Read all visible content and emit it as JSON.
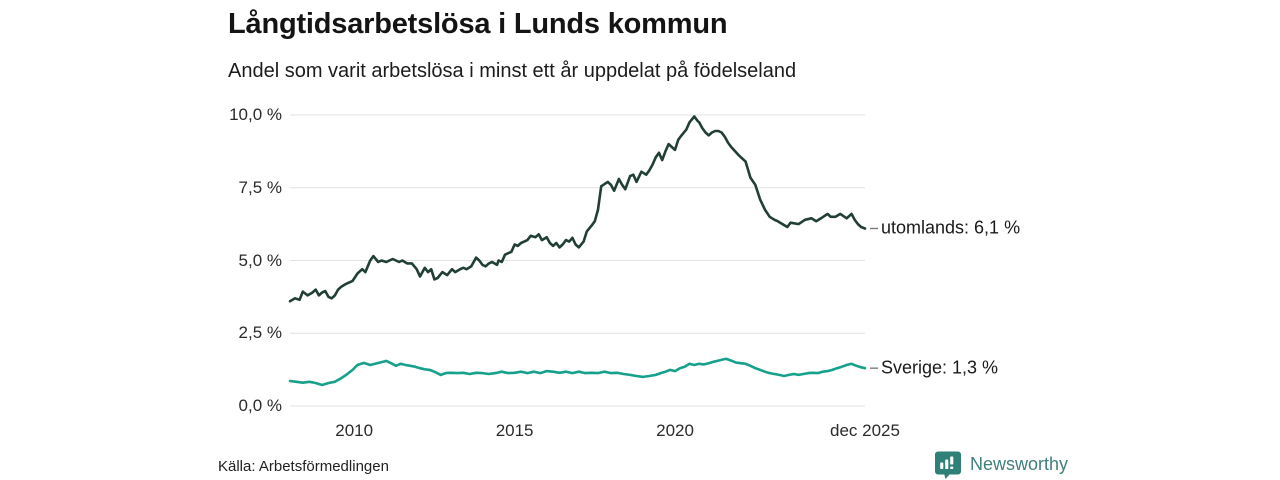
{
  "chart_data": {
    "type": "line",
    "title": "Långtidsarbetslösa i Lunds kommun",
    "subtitle": "Andel som varit arbetslösa i minst ett år uppdelat på födelseland",
    "xlabel": "",
    "ylabel": "",
    "x_unit": "decimal_year",
    "xlim": [
      2008.0,
      2025.92
    ],
    "ylim": [
      0,
      10
    ],
    "grid": "horizontal",
    "legend_position": "end-of-line-labels",
    "yticks": [
      {
        "v": 0,
        "label": "0,0 %"
      },
      {
        "v": 2.5,
        "label": "2,5 %"
      },
      {
        "v": 5,
        "label": "5,0 %"
      },
      {
        "v": 7.5,
        "label": "7,5 %"
      },
      {
        "v": 10,
        "label": "10,0 %"
      }
    ],
    "xticks": [
      {
        "t": 2010,
        "label": "2010"
      },
      {
        "t": 2015,
        "label": "2015"
      },
      {
        "t": 2020,
        "label": "2020"
      },
      {
        "t": 2025.92,
        "label": "dec 2025"
      }
    ],
    "series": [
      {
        "name": "utomlands",
        "end_label": "utomlands: 6,1 %",
        "end_value": "6,1 %",
        "color": "#213f36",
        "points": [
          [
            2008.0,
            3.6
          ],
          [
            2008.16,
            3.7
          ],
          [
            2008.3,
            3.65
          ],
          [
            2008.4,
            3.93
          ],
          [
            2008.55,
            3.8
          ],
          [
            2008.7,
            3.9
          ],
          [
            2008.8,
            4.0
          ],
          [
            2008.9,
            3.8
          ],
          [
            2009.0,
            3.9
          ],
          [
            2009.1,
            3.95
          ],
          [
            2009.2,
            3.75
          ],
          [
            2009.3,
            3.7
          ],
          [
            2009.4,
            3.8
          ],
          [
            2009.5,
            4.0
          ],
          [
            2009.6,
            4.1
          ],
          [
            2009.75,
            4.2
          ],
          [
            2009.95,
            4.3
          ],
          [
            2010.1,
            4.55
          ],
          [
            2010.25,
            4.7
          ],
          [
            2010.35,
            4.6
          ],
          [
            2010.5,
            5.0
          ],
          [
            2010.6,
            5.15
          ],
          [
            2010.75,
            4.95
          ],
          [
            2010.85,
            5.0
          ],
          [
            2011.0,
            4.95
          ],
          [
            2011.2,
            5.05
          ],
          [
            2011.4,
            4.95
          ],
          [
            2011.5,
            5.0
          ],
          [
            2011.65,
            4.9
          ],
          [
            2011.8,
            4.9
          ],
          [
            2011.95,
            4.7
          ],
          [
            2012.05,
            4.45
          ],
          [
            2012.2,
            4.75
          ],
          [
            2012.3,
            4.6
          ],
          [
            2012.4,
            4.7
          ],
          [
            2012.5,
            4.35
          ],
          [
            2012.6,
            4.4
          ],
          [
            2012.75,
            4.6
          ],
          [
            2012.9,
            4.5
          ],
          [
            2013.05,
            4.7
          ],
          [
            2013.15,
            4.6
          ],
          [
            2013.3,
            4.7
          ],
          [
            2013.4,
            4.75
          ],
          [
            2013.5,
            4.7
          ],
          [
            2013.65,
            4.8
          ],
          [
            2013.8,
            5.1
          ],
          [
            2013.9,
            5.0
          ],
          [
            2014.0,
            4.85
          ],
          [
            2014.1,
            4.8
          ],
          [
            2014.2,
            4.9
          ],
          [
            2014.3,
            4.95
          ],
          [
            2014.45,
            4.85
          ],
          [
            2014.5,
            5.0
          ],
          [
            2014.6,
            4.95
          ],
          [
            2014.7,
            5.2
          ],
          [
            2014.8,
            5.25
          ],
          [
            2014.9,
            5.3
          ],
          [
            2015.0,
            5.55
          ],
          [
            2015.1,
            5.5
          ],
          [
            2015.2,
            5.6
          ],
          [
            2015.3,
            5.65
          ],
          [
            2015.4,
            5.7
          ],
          [
            2015.5,
            5.85
          ],
          [
            2015.65,
            5.8
          ],
          [
            2015.75,
            5.9
          ],
          [
            2015.85,
            5.7
          ],
          [
            2016.0,
            5.8
          ],
          [
            2016.1,
            5.6
          ],
          [
            2016.2,
            5.5
          ],
          [
            2016.3,
            5.6
          ],
          [
            2016.4,
            5.45
          ],
          [
            2016.5,
            5.55
          ],
          [
            2016.6,
            5.7
          ],
          [
            2016.7,
            5.65
          ],
          [
            2016.8,
            5.78
          ],
          [
            2016.9,
            5.55
          ],
          [
            2017.0,
            5.45
          ],
          [
            2017.15,
            5.65
          ],
          [
            2017.25,
            6.0
          ],
          [
            2017.4,
            6.2
          ],
          [
            2017.5,
            6.35
          ],
          [
            2017.6,
            6.75
          ],
          [
            2017.7,
            7.55
          ],
          [
            2017.9,
            7.7
          ],
          [
            2018.0,
            7.6
          ],
          [
            2018.1,
            7.4
          ],
          [
            2018.25,
            7.8
          ],
          [
            2018.35,
            7.6
          ],
          [
            2018.45,
            7.45
          ],
          [
            2018.6,
            7.9
          ],
          [
            2018.7,
            7.95
          ],
          [
            2018.8,
            7.7
          ],
          [
            2018.95,
            8.05
          ],
          [
            2019.1,
            7.95
          ],
          [
            2019.2,
            8.1
          ],
          [
            2019.3,
            8.3
          ],
          [
            2019.4,
            8.55
          ],
          [
            2019.5,
            8.7
          ],
          [
            2019.6,
            8.45
          ],
          [
            2019.7,
            8.75
          ],
          [
            2019.8,
            9.0
          ],
          [
            2019.9,
            8.9
          ],
          [
            2020.0,
            8.8
          ],
          [
            2020.1,
            9.15
          ],
          [
            2020.2,
            9.3
          ],
          [
            2020.35,
            9.5
          ],
          [
            2020.45,
            9.75
          ],
          [
            2020.6,
            9.95
          ],
          [
            2020.7,
            9.8
          ],
          [
            2020.75,
            9.75
          ],
          [
            2020.85,
            9.55
          ],
          [
            2020.95,
            9.4
          ],
          [
            2021.05,
            9.3
          ],
          [
            2021.15,
            9.4
          ],
          [
            2021.25,
            9.45
          ],
          [
            2021.35,
            9.45
          ],
          [
            2021.45,
            9.4
          ],
          [
            2021.55,
            9.25
          ],
          [
            2021.65,
            9.05
          ],
          [
            2021.75,
            8.9
          ],
          [
            2022.0,
            8.6
          ],
          [
            2022.2,
            8.4
          ],
          [
            2022.35,
            7.85
          ],
          [
            2022.5,
            7.6
          ],
          [
            2022.65,
            7.1
          ],
          [
            2022.8,
            6.75
          ],
          [
            2022.95,
            6.5
          ],
          [
            2023.1,
            6.4
          ],
          [
            2023.2,
            6.35
          ],
          [
            2023.35,
            6.25
          ],
          [
            2023.5,
            6.15
          ],
          [
            2023.6,
            6.3
          ],
          [
            2023.85,
            6.25
          ],
          [
            2024.05,
            6.4
          ],
          [
            2024.25,
            6.45
          ],
          [
            2024.4,
            6.35
          ],
          [
            2024.55,
            6.45
          ],
          [
            2024.75,
            6.6
          ],
          [
            2024.85,
            6.5
          ],
          [
            2025.0,
            6.5
          ],
          [
            2025.15,
            6.6
          ],
          [
            2025.35,
            6.45
          ],
          [
            2025.5,
            6.6
          ],
          [
            2025.6,
            6.4
          ],
          [
            2025.7,
            6.25
          ],
          [
            2025.8,
            6.15
          ],
          [
            2025.92,
            6.1
          ]
        ]
      },
      {
        "name": "Sverige",
        "end_label": "Sverige: 1,3 %",
        "end_value": "1,3 %",
        "color": "#17a08b",
        "points": [
          [
            2008.0,
            0.86
          ],
          [
            2008.2,
            0.83
          ],
          [
            2008.4,
            0.8
          ],
          [
            2008.6,
            0.83
          ],
          [
            2008.8,
            0.79
          ],
          [
            2009.0,
            0.72
          ],
          [
            2009.2,
            0.79
          ],
          [
            2009.4,
            0.83
          ],
          [
            2009.6,
            0.96
          ],
          [
            2009.75,
            1.07
          ],
          [
            2009.95,
            1.24
          ],
          [
            2010.1,
            1.41
          ],
          [
            2010.3,
            1.48
          ],
          [
            2010.5,
            1.41
          ],
          [
            2010.65,
            1.45
          ],
          [
            2010.8,
            1.49
          ],
          [
            2011.0,
            1.55
          ],
          [
            2011.15,
            1.47
          ],
          [
            2011.3,
            1.38
          ],
          [
            2011.45,
            1.45
          ],
          [
            2011.6,
            1.41
          ],
          [
            2011.75,
            1.38
          ],
          [
            2011.9,
            1.35
          ],
          [
            2012.05,
            1.3
          ],
          [
            2012.2,
            1.26
          ],
          [
            2012.35,
            1.24
          ],
          [
            2012.5,
            1.18
          ],
          [
            2012.7,
            1.07
          ],
          [
            2012.85,
            1.13
          ],
          [
            2013.0,
            1.14
          ],
          [
            2013.2,
            1.13
          ],
          [
            2013.4,
            1.14
          ],
          [
            2013.6,
            1.1
          ],
          [
            2013.8,
            1.14
          ],
          [
            2014.0,
            1.13
          ],
          [
            2014.2,
            1.1
          ],
          [
            2014.4,
            1.13
          ],
          [
            2014.6,
            1.18
          ],
          [
            2014.8,
            1.13
          ],
          [
            2015.0,
            1.14
          ],
          [
            2015.2,
            1.18
          ],
          [
            2015.4,
            1.13
          ],
          [
            2015.6,
            1.18
          ],
          [
            2015.8,
            1.13
          ],
          [
            2016.0,
            1.2
          ],
          [
            2016.2,
            1.18
          ],
          [
            2016.4,
            1.14
          ],
          [
            2016.6,
            1.18
          ],
          [
            2016.8,
            1.13
          ],
          [
            2017.0,
            1.18
          ],
          [
            2017.2,
            1.13
          ],
          [
            2017.4,
            1.14
          ],
          [
            2017.6,
            1.13
          ],
          [
            2017.8,
            1.18
          ],
          [
            2018.0,
            1.13
          ],
          [
            2018.2,
            1.14
          ],
          [
            2018.4,
            1.1
          ],
          [
            2018.6,
            1.07
          ],
          [
            2018.8,
            1.03
          ],
          [
            2019.0,
            1.0
          ],
          [
            2019.2,
            1.03
          ],
          [
            2019.4,
            1.07
          ],
          [
            2019.55,
            1.13
          ],
          [
            2019.7,
            1.18
          ],
          [
            2019.85,
            1.24
          ],
          [
            2020.0,
            1.2
          ],
          [
            2020.15,
            1.3
          ],
          [
            2020.3,
            1.35
          ],
          [
            2020.45,
            1.45
          ],
          [
            2020.6,
            1.41
          ],
          [
            2020.75,
            1.45
          ],
          [
            2020.9,
            1.43
          ],
          [
            2021.05,
            1.47
          ],
          [
            2021.2,
            1.52
          ],
          [
            2021.35,
            1.56
          ],
          [
            2021.5,
            1.6
          ],
          [
            2021.6,
            1.62
          ],
          [
            2021.75,
            1.56
          ],
          [
            2021.9,
            1.49
          ],
          [
            2022.05,
            1.47
          ],
          [
            2022.2,
            1.45
          ],
          [
            2022.35,
            1.38
          ],
          [
            2022.5,
            1.3
          ],
          [
            2022.65,
            1.24
          ],
          [
            2022.8,
            1.18
          ],
          [
            2022.95,
            1.13
          ],
          [
            2023.1,
            1.1
          ],
          [
            2023.25,
            1.07
          ],
          [
            2023.4,
            1.03
          ],
          [
            2023.55,
            1.07
          ],
          [
            2023.7,
            1.1
          ],
          [
            2023.85,
            1.07
          ],
          [
            2024.0,
            1.1
          ],
          [
            2024.15,
            1.13
          ],
          [
            2024.3,
            1.14
          ],
          [
            2024.45,
            1.13
          ],
          [
            2024.6,
            1.18
          ],
          [
            2024.75,
            1.2
          ],
          [
            2024.9,
            1.24
          ],
          [
            2025.05,
            1.3
          ],
          [
            2025.2,
            1.35
          ],
          [
            2025.35,
            1.41
          ],
          [
            2025.5,
            1.45
          ],
          [
            2025.65,
            1.38
          ],
          [
            2025.8,
            1.33
          ],
          [
            2025.92,
            1.3
          ]
        ]
      }
    ]
  },
  "footer": {
    "source": "Källa: Arbetsförmedlingen",
    "brand": "Newsworthy"
  },
  "colors": {
    "grid": "#e2e2e2",
    "connector": "#7a7a7a",
    "brand_icon": "#2f8077",
    "brand_text": "#40807d"
  }
}
